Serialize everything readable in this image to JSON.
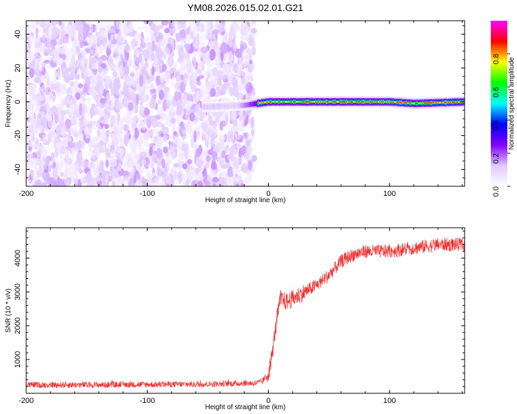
{
  "figure": {
    "title": "YM08.2026.015.02.01.G21"
  },
  "chart_data": [
    {
      "type": "heatmap",
      "title": "YM08.2026.015.02.01.G21",
      "xlabel": "Height of straight line (km)",
      "ylabel": "Frequency (Hz)",
      "xlim": [
        -200,
        162
      ],
      "ylim": [
        -50,
        48
      ],
      "x_ticks": [
        -200,
        -100,
        0,
        100
      ],
      "x_tick_labels": [
        "-200",
        "-100",
        "0",
        "100"
      ],
      "y_ticks": [
        -40,
        -20,
        0,
        20,
        40
      ],
      "y_tick_labels": [
        "-40",
        "-20",
        "0",
        "20",
        "40"
      ],
      "colorbar": {
        "label": "Normalized spectral amplitude",
        "range": [
          0,
          1
        ],
        "ticks": [
          0,
          0.2,
          0.4,
          0.6,
          0.8
        ],
        "tick_labels": [
          "0.0",
          "0.2",
          "0.4",
          "0.6",
          "0.8"
        ],
        "colormap": "rainbow",
        "colors": [
          "#ffffff",
          "#e0c8ff",
          "#8000ff",
          "#0000ff",
          "#00ffff",
          "#00ff00",
          "#ffff00",
          "#ff0000",
          "#ff00ff"
        ]
      },
      "noise_region": {
        "x": [
          -200,
          -20
        ],
        "frequency_range": [
          -50,
          48
        ],
        "amplitude": [
          0,
          0.15
        ]
      },
      "signal_ridge": {
        "x": [
          -50,
          -20,
          0,
          100,
          120,
          162
        ],
        "frequency": [
          -3,
          -2,
          0,
          0,
          -1,
          0
        ],
        "peak_amplitude": 0.95
      },
      "grid": false
    },
    {
      "type": "line",
      "xlabel": "Height of straight line (km)",
      "ylabel": "SNR (10 * v/v)",
      "xlim": [
        -200,
        162
      ],
      "ylim": [
        0,
        4900
      ],
      "x_ticks": [
        -200,
        -100,
        0,
        100
      ],
      "x_tick_labels": [
        "-200",
        "-100",
        "0",
        "100"
      ],
      "y_ticks": [
        1000,
        2000,
        3000,
        4000
      ],
      "y_tick_labels": [
        "1000",
        "2000",
        "3000",
        "4000"
      ],
      "series": [
        {
          "color": "#ee3333",
          "x": [
            -200,
            -150,
            -100,
            -50,
            -20,
            -10,
            -5,
            0,
            3,
            5,
            8,
            10,
            15,
            20,
            30,
            40,
            50,
            60,
            70,
            80,
            90,
            100,
            110,
            120,
            130,
            140,
            150,
            162
          ],
          "values": [
            250,
            250,
            260,
            270,
            300,
            300,
            350,
            600,
            1100,
            1700,
            2400,
            2800,
            2700,
            2800,
            3000,
            3200,
            3500,
            3900,
            4100,
            4200,
            4200,
            4200,
            4250,
            4300,
            4350,
            4400,
            4400,
            4400
          ]
        }
      ],
      "grid": false
    }
  ]
}
